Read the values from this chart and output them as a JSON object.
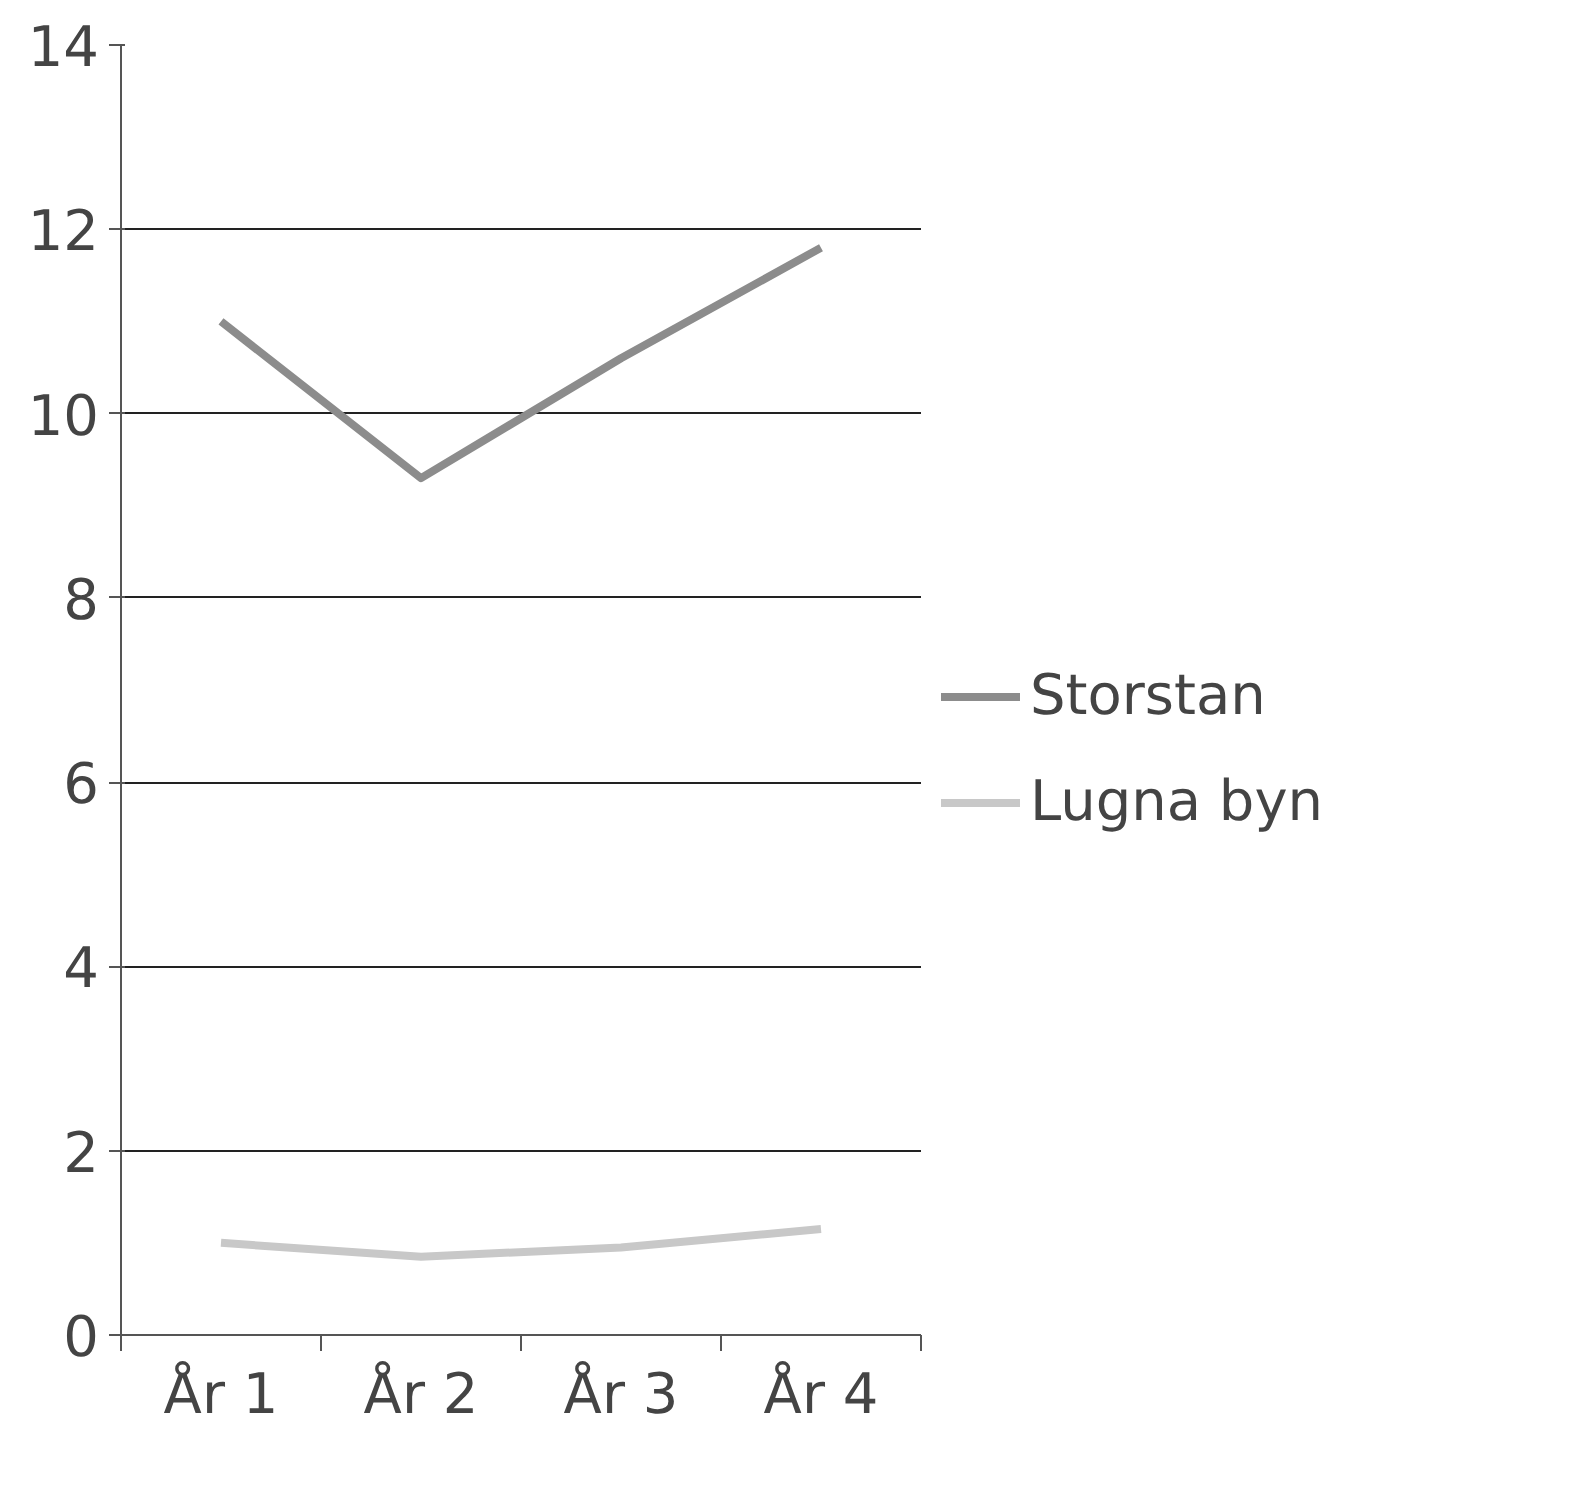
{
  "chart_data": {
    "type": "line",
    "categories": [
      "År 1",
      "År 2",
      "År 3",
      "År 4"
    ],
    "series": [
      {
        "name": "Storstan",
        "color": "#8c8c8c",
        "values": [
          11.0,
          9.3,
          10.6,
          11.8
        ]
      },
      {
        "name": "Lugna byn",
        "color": "#c8c8c8",
        "values": [
          1.0,
          0.85,
          0.95,
          1.15
        ]
      }
    ],
    "ylim": [
      0,
      14
    ],
    "yticks": [
      0,
      2,
      4,
      6,
      8,
      10,
      12,
      14
    ],
    "grid": "y",
    "legend": "right",
    "marker": "none",
    "line_style": "solid"
  }
}
